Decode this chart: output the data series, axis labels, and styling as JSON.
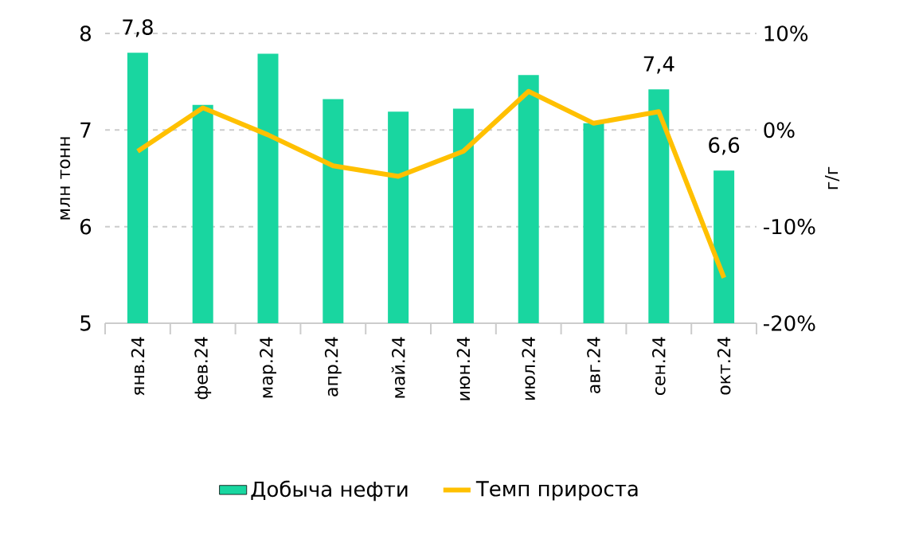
{
  "chart_data": {
    "type": "bar",
    "categories": [
      "янв.24",
      "фев.24",
      "мар.24",
      "апр.24",
      "май.24",
      "июн.24",
      "июл.24",
      "авг.24",
      "сен.24",
      "окт.24"
    ],
    "series": [
      {
        "name": "Добыча нефти",
        "color": "#19d6a0",
        "values": [
          7.8,
          7.26,
          7.79,
          7.32,
          7.19,
          7.22,
          7.57,
          7.07,
          7.42,
          6.58
        ],
        "value_labels": [
          "7,8",
          null,
          null,
          null,
          null,
          null,
          null,
          null,
          "7,4",
          "6,6"
        ]
      },
      {
        "name": "Темп прироста",
        "type": "line",
        "axis": "y2",
        "color": "#ffc000",
        "values": [
          -2.2,
          2.3,
          -0.5,
          -3.7,
          -4.8,
          -2.2,
          4.0,
          0.7,
          1.9,
          -15.3
        ]
      }
    ],
    "ylabel": "млн тонн",
    "y2label": "г/г",
    "ylim": [
      5,
      8
    ],
    "yticks": [
      5,
      6,
      7,
      8
    ],
    "y2lim": [
      -20,
      10
    ],
    "y2ticks": [
      {
        "value": -20,
        "label": "-20%"
      },
      {
        "value": -10,
        "label": "-10%"
      },
      {
        "value": 0,
        "label": "0%"
      },
      {
        "value": 10,
        "label": "10%"
      }
    ],
    "grid": "y",
    "legend": "bottom"
  }
}
